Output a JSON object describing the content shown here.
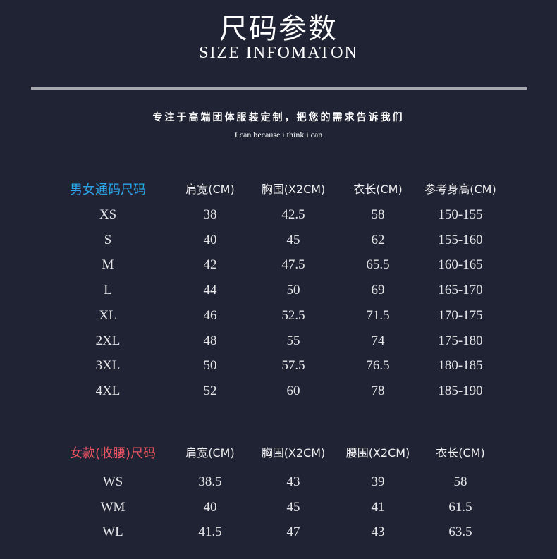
{
  "header": {
    "title": "尺码参数",
    "subtitle": "SIZE INFOMATON",
    "slogan": "专注于高端团体服装定制，把您的需求告诉我们",
    "motto": "I can because i think i can"
  },
  "colors": {
    "background": "#1f2334",
    "unisex_accent": "#2ba4ea",
    "women_accent": "#ec5560"
  },
  "unisex_table": {
    "columns": [
      "男女通码尺码",
      "肩宽(CM)",
      "胸围(X2CM)",
      "衣长(CM)",
      "参考身高(CM)"
    ],
    "rows": [
      [
        "XS",
        "38",
        "42.5",
        "58",
        "150-155"
      ],
      [
        "S",
        "40",
        "45",
        "62",
        "155-160"
      ],
      [
        "M",
        "42",
        "47.5",
        "65.5",
        "160-165"
      ],
      [
        "L",
        "44",
        "50",
        "69",
        "165-170"
      ],
      [
        "XL",
        "46",
        "52.5",
        "71.5",
        "170-175"
      ],
      [
        "2XL",
        "48",
        "55",
        "74",
        "175-180"
      ],
      [
        "3XL",
        "50",
        "57.5",
        "76.5",
        "180-185"
      ],
      [
        "4XL",
        "52",
        "60",
        "78",
        "185-190"
      ]
    ]
  },
  "women_table": {
    "columns": [
      "女款(收腰)尺码",
      "肩宽(CM)",
      "胸围(X2CM)",
      "腰围(X2CM)",
      "衣长(CM)"
    ],
    "rows": [
      [
        "WS",
        "38.5",
        "43",
        "39",
        "58"
      ],
      [
        "WM",
        "40",
        "45",
        "41",
        "61.5"
      ],
      [
        "WL",
        "41.5",
        "47",
        "43",
        "63.5"
      ]
    ]
  }
}
